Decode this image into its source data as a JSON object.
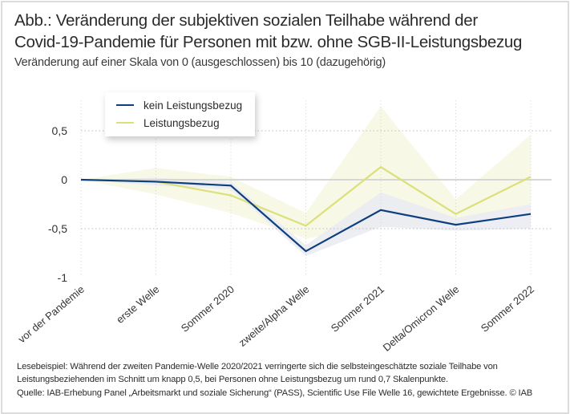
{
  "figure": {
    "title_line1": "Abb.: Veränderung der subjektiven sozialen Teilhabe während der",
    "title_line2": "Covid-19-Pandemie für Personen mit bzw. ohne SGB-II-Leistungsbezug",
    "subtitle": "Veränderung auf einer Skala von 0 (ausgeschlossen) bis 10 (dazugehörig)",
    "reading_example": "Lesebeispiel: Während der zweiten Pandemie-Welle 2020/2021 verringerte sich die selbsteingeschätzte soziale Teilhabe von Leistungsbeziehenden im Schnitt um knapp 0,5, bei Personen ohne Leistungsbezug um rund 0,7 Skalenpunkte.",
    "source": "Quelle: IAB-Erhebung Panel „Arbeitsmarkt und soziale Sicherung“ (PASS), Scientific Use File Welle 16, gewichtete Ergebnisse.  © IAB"
  },
  "colors": {
    "kein_leistungsbezug": "#0d3f7e",
    "kein_leistungsbezug_band": "#e9ebf2",
    "leistungsbezug": "#dbe07a",
    "leistungsbezug_band": "#f7f8e6",
    "zero_line": "#d6d6d6",
    "grid": "#bdbdbd"
  },
  "chart_data": {
    "type": "line",
    "title": "Veränderung der subjektiven sozialen Teilhabe während der Covid-19-Pandemie für Personen mit bzw. ohne SGB-II-Leistungsbezug",
    "xlabel": "",
    "ylabel": "",
    "categories": [
      "vor der Pandemie",
      "erste Welle",
      "Sommer 2020",
      "zweite/Alpha Welle",
      "Sommer 2021",
      "Delta/Omicron Welle",
      "Sommer 2022"
    ],
    "ylim": [
      -1,
      0.75
    ],
    "yticks": [
      0.5,
      0,
      -0.5,
      -1
    ],
    "ytick_labels": [
      "0,5",
      "0",
      "-0,5",
      "-1"
    ],
    "grid": true,
    "legend_position": "top-left",
    "series": [
      {
        "name": "kein Leistungsbezug",
        "values": [
          0,
          -0.02,
          -0.06,
          -0.73,
          -0.31,
          -0.46,
          -0.35
        ],
        "ci_upper": [
          0,
          0.02,
          -0.02,
          -0.67,
          -0.13,
          -0.39,
          -0.25
        ],
        "ci_lower": [
          0,
          -0.06,
          -0.1,
          -0.78,
          -0.48,
          -0.52,
          -0.5
        ]
      },
      {
        "name": "Leistungsbezug",
        "values": [
          0,
          -0.02,
          -0.16,
          -0.47,
          0.13,
          -0.35,
          0.03
        ],
        "ci_upper": [
          0,
          0.12,
          0.03,
          -0.34,
          0.75,
          -0.2,
          0.46
        ],
        "ci_lower": [
          0,
          -0.15,
          -0.34,
          -0.6,
          -0.49,
          -0.45,
          -0.25
        ]
      }
    ]
  }
}
